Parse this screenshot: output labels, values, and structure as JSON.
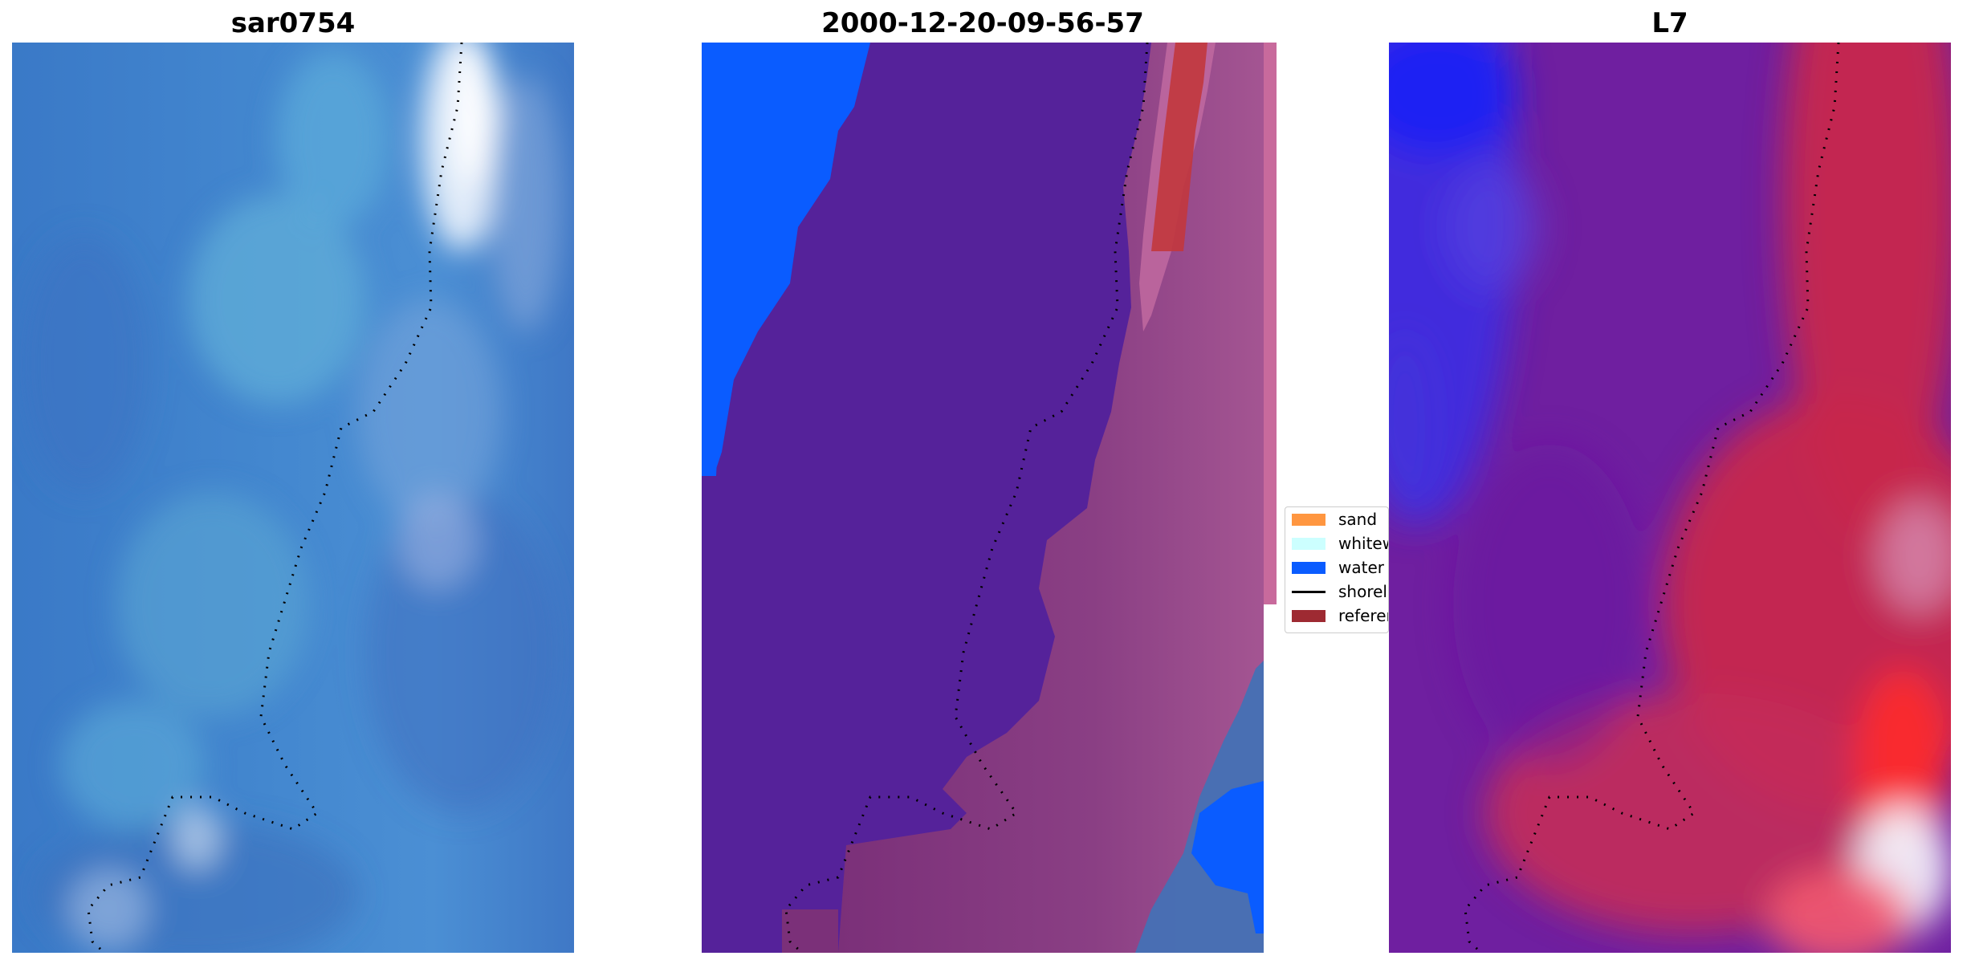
{
  "panels": [
    {
      "title": "sar0754"
    },
    {
      "title": "2000-12-20-09-56-57"
    },
    {
      "title": "L7"
    }
  ],
  "legend": {
    "items": [
      {
        "label": "sand",
        "color": "#ff9640",
        "kind": "patch"
      },
      {
        "label": "whitew",
        "color": "#ccffff",
        "kind": "patch"
      },
      {
        "label": "water",
        "color": "#0a5cff",
        "kind": "patch"
      },
      {
        "label": "shorel",
        "color": "#000000",
        "kind": "line"
      },
      {
        "label": "referer",
        "color": "#9e2a32",
        "kind": "patch"
      }
    ]
  }
}
